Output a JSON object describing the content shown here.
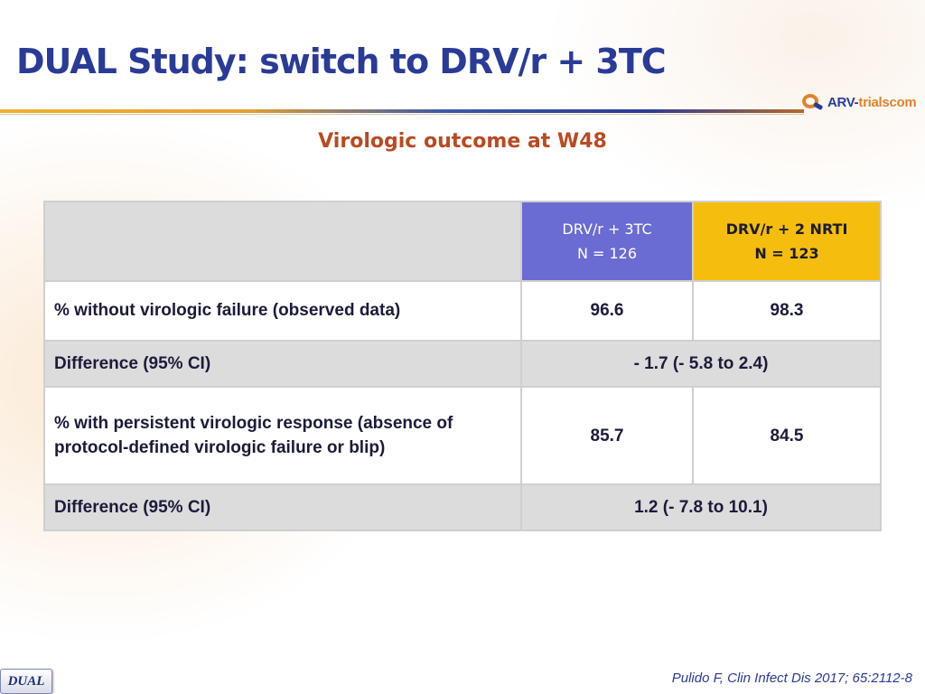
{
  "slide": {
    "title": "DUAL Study: switch to DRV/r + 3TC",
    "subtitle": "Virologic outcome at W48",
    "logo": {
      "main": "ARV-",
      "accent": "trials",
      "suffix": "com"
    },
    "citation": "Pulido F, Clin Infect Dis 2017; 65:2112-8",
    "tag": "DUAL"
  },
  "table": {
    "arms": [
      {
        "name": "DRV/r + 3TC",
        "n": "N = 126",
        "color": "#6b6bd4"
      },
      {
        "name": "DRV/r + 2 NRTI",
        "n": "N = 123",
        "color": "#f5be0e"
      }
    ],
    "rows": [
      {
        "label": "% without virologic failure (observed data)",
        "arm1": "96.6",
        "arm2": "98.3"
      },
      {
        "label": "Difference (95% CI)",
        "value": "- 1.7 (- 5.8 to 2.4)"
      },
      {
        "label": "% with persistent virologic response (absence of protocol-defined virologic failure or blip)",
        "arm1": "85.7",
        "arm2": "84.5"
      },
      {
        "label": "Difference (95% CI)",
        "value": "1.2 (- 7.8 to 10.1)"
      }
    ]
  }
}
